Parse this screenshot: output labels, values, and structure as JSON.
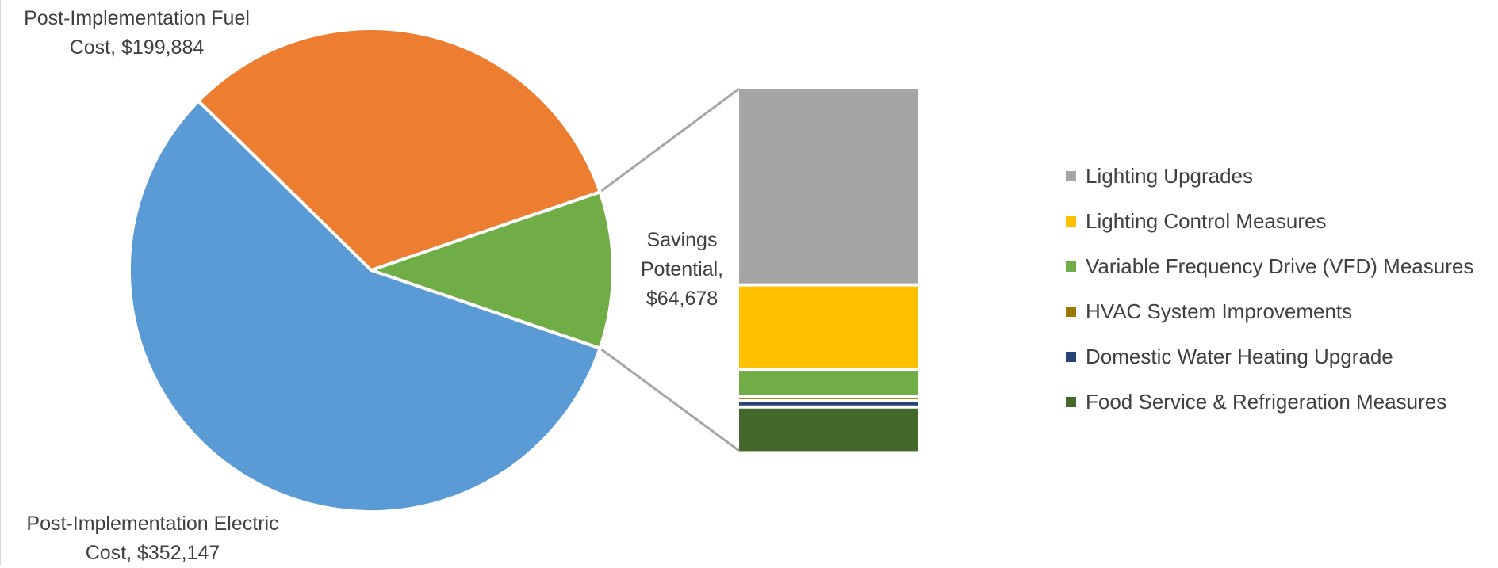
{
  "chart_data": {
    "type": "pie",
    "subtype": "bar-of-pie",
    "title": "",
    "slices": [
      {
        "key": "electric",
        "label": "Post-Implementation Electric",
        "value_label": "Cost, $352,147",
        "value": 352147,
        "color": "#5b9bd5"
      },
      {
        "key": "fuel",
        "label": "Post-Implementation Fuel",
        "value_label": "Cost, $199,884",
        "value": 199884,
        "color": "#ed7d31"
      },
      {
        "key": "savings",
        "label": "Savings",
        "label2": "Potential,",
        "value_label": "$64,678",
        "value": 64678,
        "color": "#70ad47"
      }
    ],
    "breakdown": [
      {
        "name": "Lighting Upgrades",
        "value": 34800,
        "color": "#a5a5a5"
      },
      {
        "name": "Lighting Control Measures",
        "value": 14500,
        "color": "#ffc000"
      },
      {
        "name": "Variable Frequency Drive (VFD) Measures",
        "value": 4300,
        "color": "#70ad47"
      },
      {
        "name": "HVAC System Improvements",
        "value": 150,
        "color": "#9e7707"
      },
      {
        "name": "Domestic Water Heating Upgrade",
        "value": 550,
        "color": "#264478"
      },
      {
        "name": "Food Service & Refrigeration Measures",
        "value": 7600,
        "color": "#43682b"
      }
    ],
    "legend_position": "right"
  }
}
